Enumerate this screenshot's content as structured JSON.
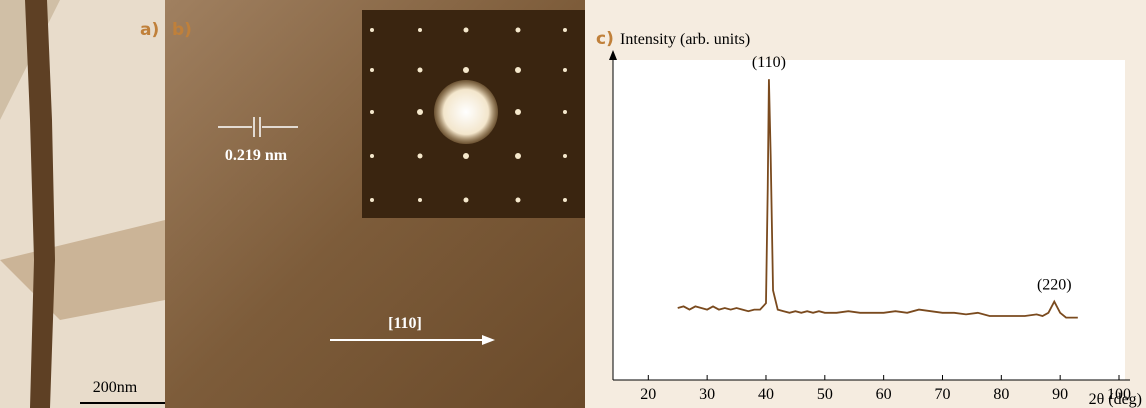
{
  "panel_a": {
    "label": "a)",
    "scale_bar": "200nm"
  },
  "panel_b": {
    "label": "b)",
    "spacing": "0.219 nm",
    "direction": "[110]"
  },
  "chart_data": {
    "type": "line",
    "panel_label": "c)",
    "y_label": "Intensity (arb. units)",
    "x_label": "2θ (deg)",
    "annotations": [
      "(110)",
      "(220)"
    ],
    "xlim": [
      14,
      100
    ],
    "xticks": [
      20,
      30,
      40,
      50,
      60,
      70,
      80,
      90,
      100
    ],
    "ylim": [
      0,
      100
    ],
    "series": [
      {
        "color": "#7a4a1e",
        "x": [
          25,
          26,
          27,
          28,
          29,
          30,
          31,
          32,
          33,
          34,
          35,
          36,
          37,
          38,
          39,
          40,
          40.3,
          40.5,
          40.8,
          41.2,
          42,
          43,
          44,
          45,
          46,
          47,
          48,
          49,
          50,
          52,
          54,
          56,
          58,
          60,
          62,
          64,
          66,
          68,
          70,
          72,
          74,
          76,
          78,
          80,
          82,
          84,
          86,
          87,
          88,
          89,
          90,
          91,
          92,
          93
        ],
        "values": [
          22.5,
          23,
          22,
          23,
          22.5,
          22,
          23,
          22,
          22.5,
          22,
          22.5,
          22,
          21.5,
          22,
          22,
          24,
          60,
          94,
          70,
          28,
          22,
          21.5,
          21,
          21.5,
          21,
          21.5,
          21,
          21.5,
          21,
          21,
          21.5,
          21,
          21,
          21,
          21.5,
          21,
          22,
          21.5,
          21,
          21,
          20.5,
          21,
          20,
          20,
          20,
          20,
          20.5,
          20,
          21,
          24.5,
          21,
          19.5,
          19.5,
          19.5
        ]
      }
    ]
  }
}
